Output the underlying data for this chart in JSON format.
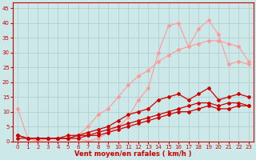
{
  "background_color": "#cce8e8",
  "grid_color": "#aacccc",
  "xlabel": "Vent moyen/en rafales ( km/h )",
  "xlabel_color": "#cc0000",
  "tick_color": "#cc0000",
  "xlim": [
    -0.5,
    23.5
  ],
  "ylim": [
    0,
    47
  ],
  "xticks": [
    0,
    1,
    2,
    3,
    4,
    5,
    6,
    7,
    8,
    9,
    10,
    11,
    12,
    13,
    14,
    15,
    16,
    17,
    18,
    19,
    20,
    21,
    22,
    23
  ],
  "yticks": [
    0,
    5,
    10,
    15,
    20,
    25,
    30,
    35,
    40,
    45
  ],
  "line_light1_x": [
    0,
    1,
    2,
    3,
    4,
    5,
    6,
    7,
    8,
    9,
    10,
    11,
    12,
    13,
    14,
    15,
    16,
    17,
    18,
    19,
    20,
    21,
    22,
    23
  ],
  "line_light1_y": [
    11,
    1,
    0,
    1,
    1,
    1,
    1,
    0,
    1,
    3,
    5,
    8,
    14,
    18,
    30,
    39,
    40,
    32,
    38,
    41,
    36,
    26,
    27,
    26
  ],
  "line_light1_color": "#ff9999",
  "line_light2_x": [
    0,
    1,
    2,
    3,
    4,
    5,
    6,
    7,
    8,
    9,
    10,
    11,
    12,
    13,
    14,
    15,
    16,
    17,
    18,
    19,
    20,
    21,
    22,
    23
  ],
  "line_light2_y": [
    2,
    1,
    1,
    1,
    1,
    1,
    2,
    5,
    9,
    11,
    15,
    19,
    22,
    24,
    27,
    29,
    31,
    32,
    33,
    34,
    34,
    33,
    32,
    27
  ],
  "line_light2_color": "#ff9999",
  "line_dark1_x": [
    0,
    1,
    2,
    3,
    4,
    5,
    6,
    7,
    8,
    9,
    10,
    11,
    12,
    13,
    14,
    15,
    16,
    17,
    18,
    19,
    20,
    21,
    22,
    23
  ],
  "line_dark1_y": [
    2,
    1,
    1,
    1,
    1,
    2,
    2,
    3,
    4,
    5,
    7,
    9,
    10,
    11,
    14,
    15,
    16,
    14,
    16,
    18,
    14,
    15,
    16,
    15
  ],
  "line_dark1_color": "#cc0000",
  "line_dark2_x": [
    0,
    1,
    2,
    3,
    4,
    5,
    6,
    7,
    8,
    9,
    10,
    11,
    12,
    13,
    14,
    15,
    16,
    17,
    18,
    19,
    20,
    21,
    22,
    23
  ],
  "line_dark2_y": [
    2,
    1,
    1,
    1,
    1,
    1,
    2,
    2,
    3,
    4,
    5,
    6,
    7,
    8,
    9,
    10,
    11,
    12,
    13,
    13,
    12,
    13,
    13,
    12
  ],
  "line_dark2_color": "#cc0000",
  "line_dark3_x": [
    0,
    1,
    2,
    3,
    4,
    5,
    6,
    7,
    8,
    9,
    10,
    11,
    12,
    13,
    14,
    15,
    16,
    17,
    18,
    19,
    20,
    21,
    22,
    23
  ],
  "line_dark3_y": [
    1,
    1,
    1,
    1,
    1,
    1,
    1,
    2,
    2,
    3,
    4,
    5,
    6,
    7,
    8,
    9,
    10,
    10,
    11,
    12,
    11,
    11,
    12,
    12
  ],
  "line_dark3_color": "#cc0000",
  "marker": "D",
  "markersize": 2.0,
  "linewidth_light": 0.8,
  "linewidth_dark": 0.9
}
